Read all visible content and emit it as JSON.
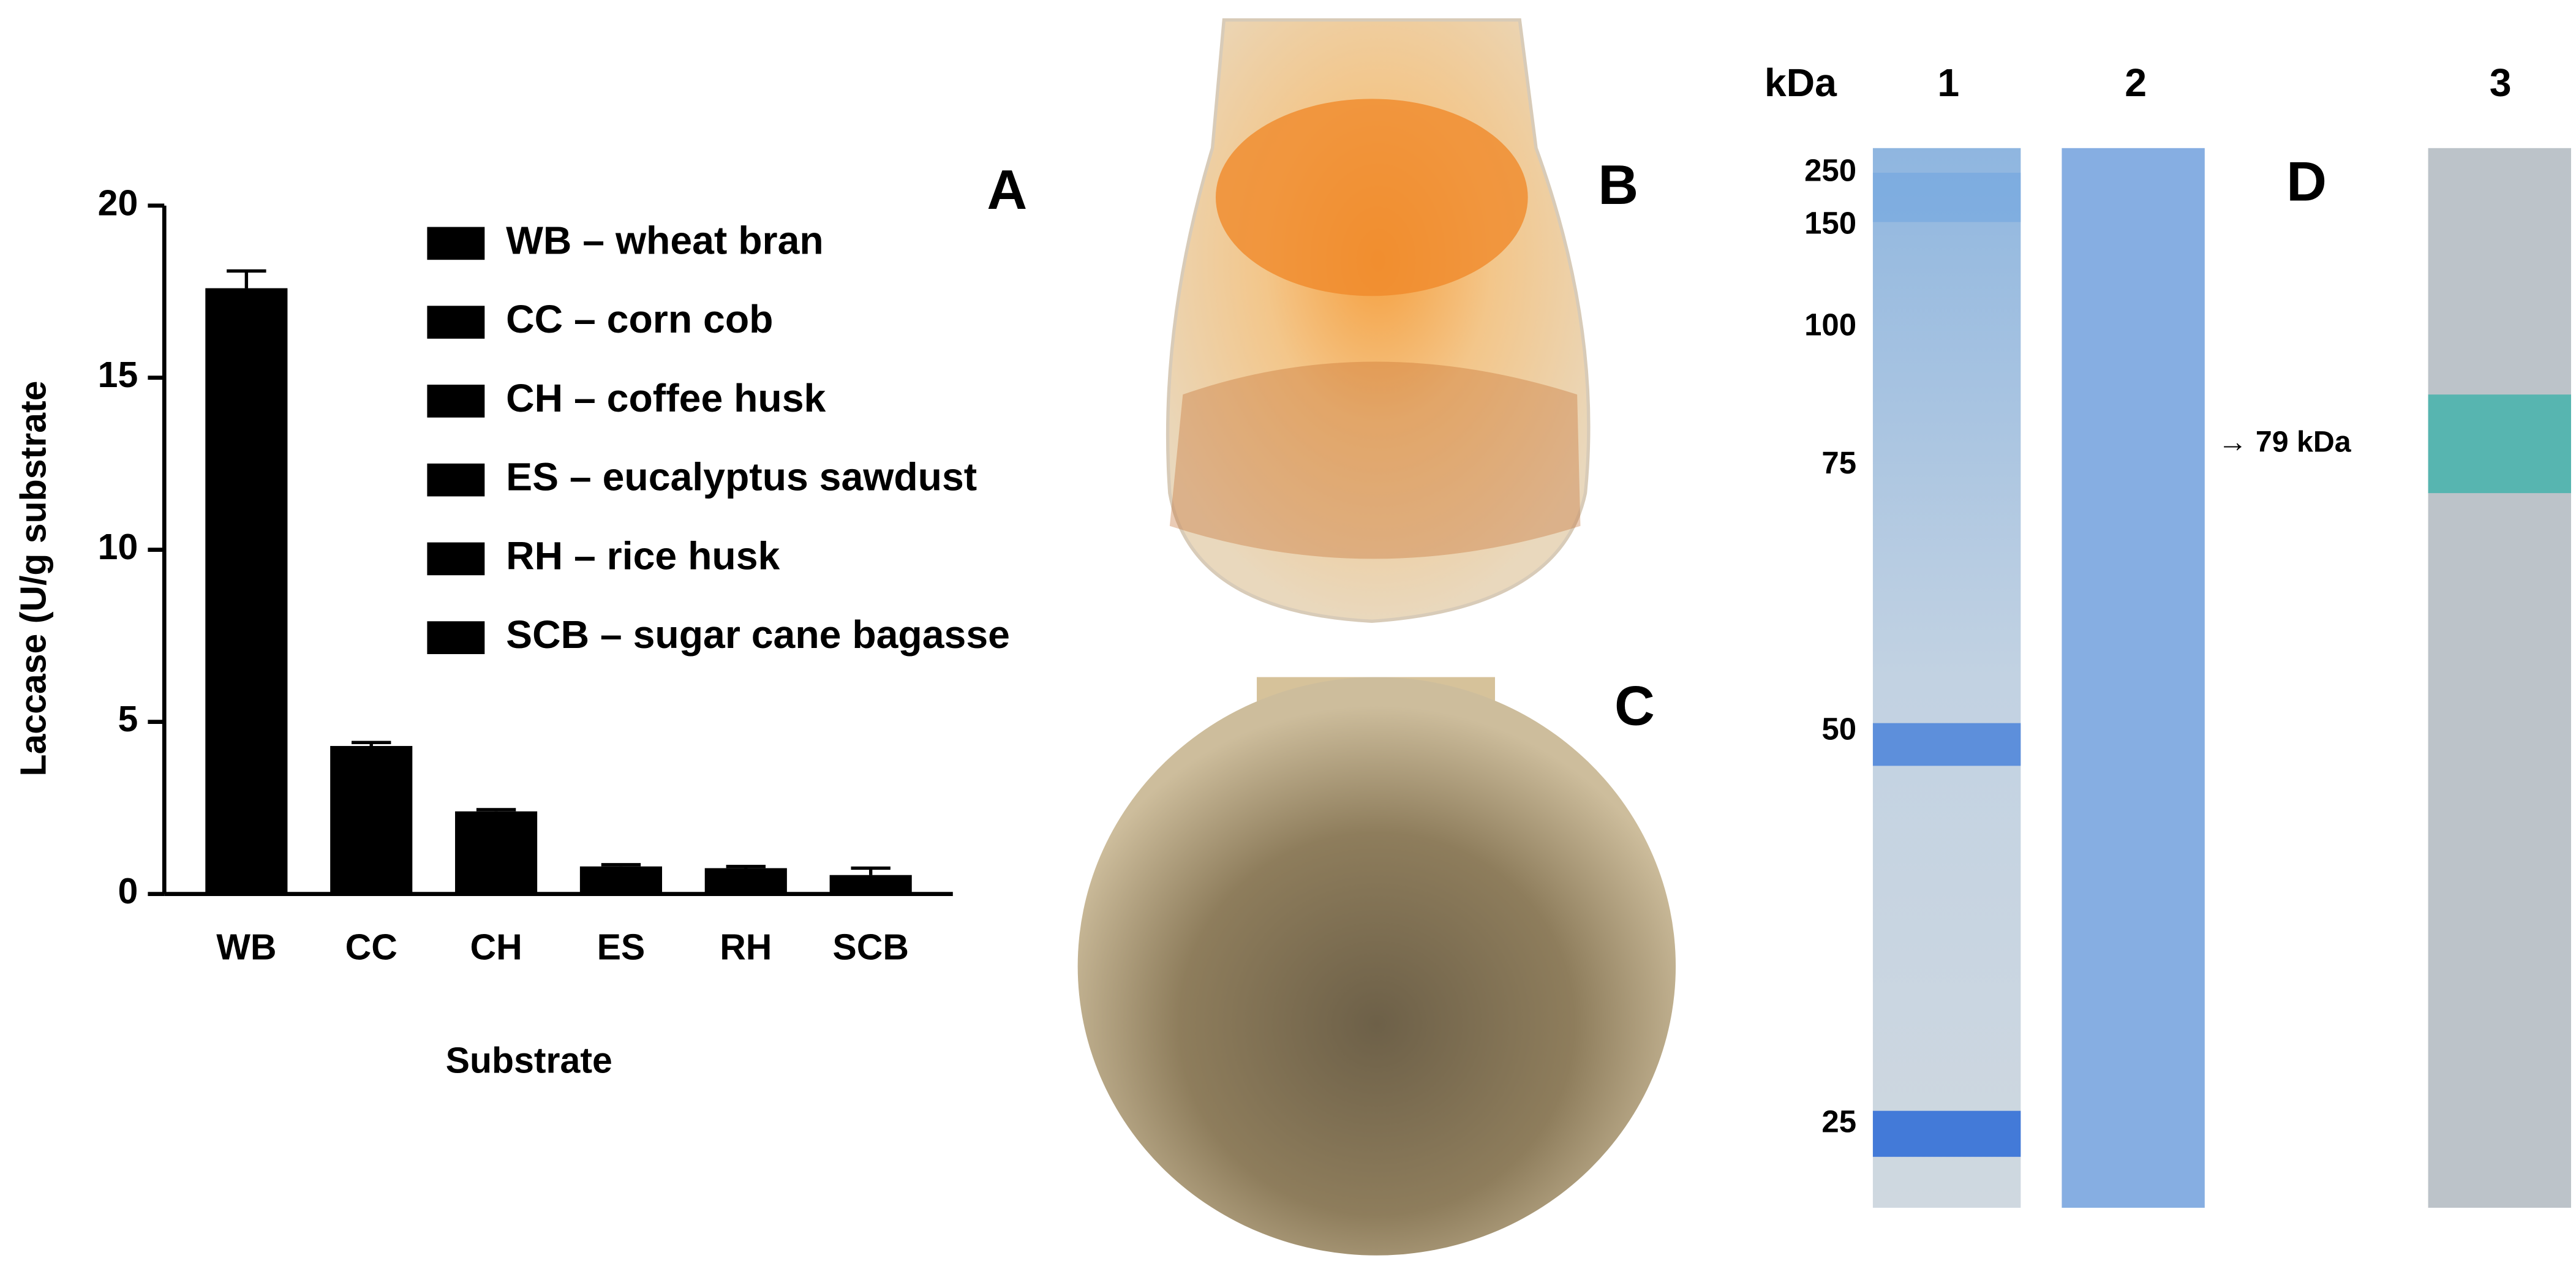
{
  "chart_data": {
    "type": "bar",
    "panel_label": "A",
    "y_label": "Laccase (U/g substrate",
    "x_label": "Substrate",
    "categories": [
      "WB",
      "CC",
      "CH",
      "ES",
      "RH",
      "SCB"
    ],
    "values": [
      17.6,
      4.3,
      2.4,
      0.8,
      0.75,
      0.55
    ],
    "errors": [
      0.5,
      0.1,
      0.05,
      0.05,
      0.05,
      0.2
    ],
    "color": "#000000",
    "ylim": [
      0,
      20
    ],
    "yticks": [
      0,
      5,
      10,
      15,
      20
    ],
    "legend": [
      "WB – wheat bran",
      "CC – corn cob",
      "CH – coffee husk",
      "ES – eucalyptus sawdust",
      "RH – rice husk",
      "SCB – sugar cane bagasse"
    ]
  },
  "photos": {
    "b_label": "B",
    "c_label": "C"
  },
  "gel": {
    "panel_label": "D",
    "unit_header": "kDa",
    "lanes": [
      "1",
      "2",
      "3"
    ],
    "markers": [
      250,
      150,
      100,
      75,
      50,
      25
    ],
    "annotation": "→ 79 kDa"
  }
}
